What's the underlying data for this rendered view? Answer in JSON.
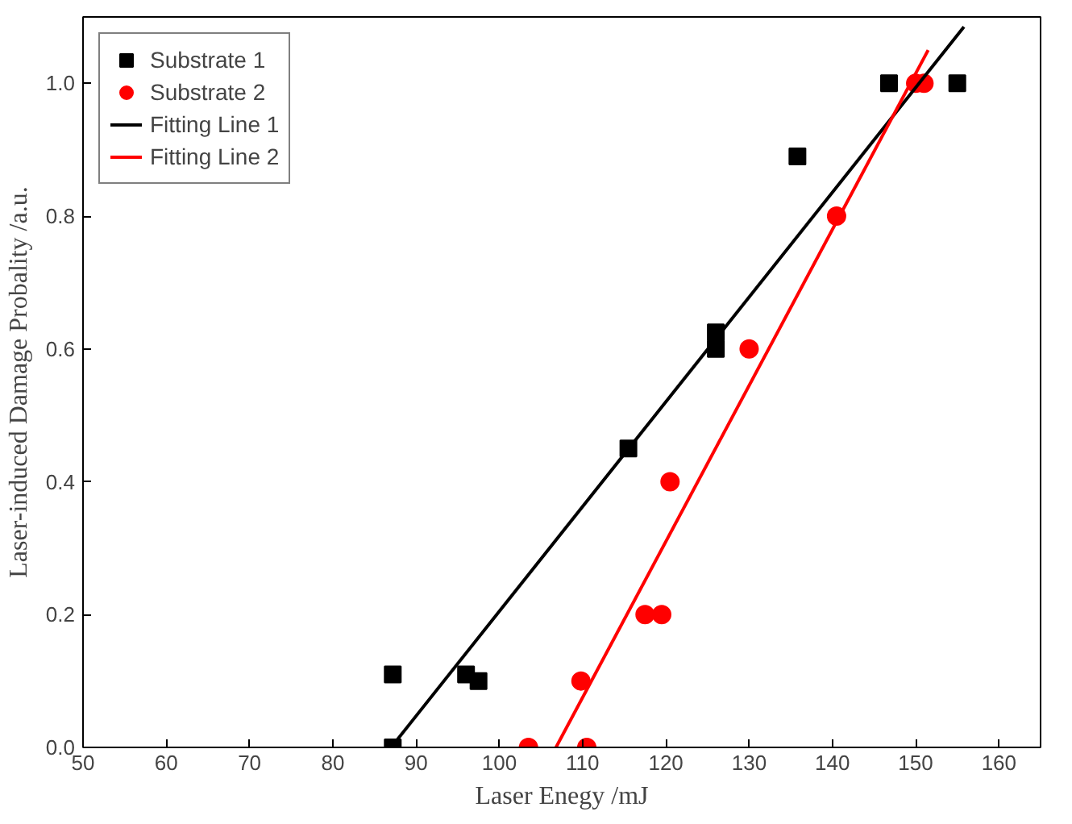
{
  "chart_data": {
    "type": "scatter",
    "xlabel": "Laser Enegy /mJ",
    "ylabel": "Laser-induced Damage Probality /a.u.",
    "xlim": [
      50,
      165
    ],
    "ylim": [
      0,
      1.1
    ],
    "xticks": [
      50,
      60,
      70,
      80,
      90,
      100,
      110,
      120,
      130,
      140,
      150,
      160
    ],
    "yticks": [
      {
        "value": 0,
        "label": "0.0"
      },
      {
        "value": 0.2,
        "label": "0.2"
      },
      {
        "value": 0.4,
        "label": "0.4"
      },
      {
        "value": 0.6,
        "label": "0.6"
      },
      {
        "value": 0.8,
        "label": "0.8"
      },
      {
        "value": 1,
        "label": "1.0"
      }
    ],
    "grid": false,
    "legend": "top left",
    "series": [
      {
        "name": "Substrate 1",
        "marker": "square",
        "color": "#000000",
        "x": [
          87.2,
          87.2,
          96,
          97.5,
          115.5,
          126,
          126,
          135.8,
          146.8,
          155
        ],
        "values": [
          0.11,
          0,
          0.11,
          0.1,
          0.45,
          0.6,
          0.625,
          0.89,
          1,
          1
        ]
      },
      {
        "name": "Substrate 2",
        "marker": "circle",
        "color": "#ff0000",
        "x": [
          103.5,
          110.5,
          109.8,
          117.5,
          119.5,
          120.5,
          130,
          140.5,
          150,
          151
        ],
        "values": [
          0,
          0,
          0.1,
          0.2,
          0.2,
          0.4,
          0.6,
          0.8,
          1,
          1
        ]
      },
      {
        "name": "Fitting Line 1",
        "type": "line",
        "color": "#000000",
        "x": [
          87,
          155.8
        ],
        "values": [
          0,
          1.085
        ]
      },
      {
        "name": "Fitting Line 2",
        "type": "line",
        "color": "#ff0000",
        "x": [
          106.8,
          151.5
        ],
        "values": [
          0,
          1.05
        ]
      }
    ]
  }
}
